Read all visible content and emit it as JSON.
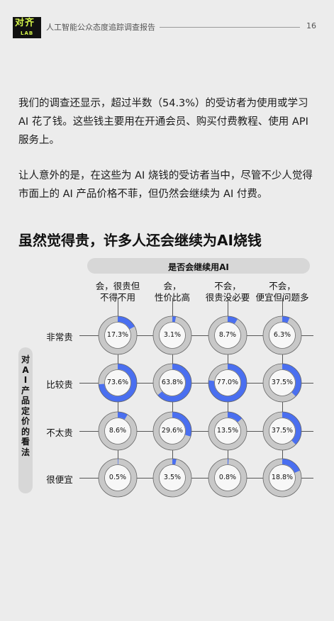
{
  "header": {
    "logo_main": "对齐",
    "logo_sub": "LAB",
    "title": "人工智能公众态度追踪调查报告",
    "page_number": "16"
  },
  "body": {
    "paragraph1": "我们的调查还显示，超过半数（54.3%）的受访者为使用或学习 AI 花了钱。这些钱主要用在开通会员、购买付费教程、使用 API 服务上。",
    "paragraph2": "让人意外的是，在这些为 AI 烧钱的受访者当中，尽管不少人觉得市面上的 AI 产品价格不菲，但仍然会继续为 AI 付费。"
  },
  "section_title": "虽然觉得贵，许多人还会继续为AI烧钱",
  "colors": {
    "accent": "#4a6ff0",
    "ring_base": "#c8c8c8",
    "band": "#d7d7d7"
  },
  "chart_data": {
    "type": "table",
    "title": "",
    "column_axis_label": "是否会继续用AI",
    "row_axis_label": "对AI产品定价的看法",
    "columns": [
      [
        "会，很贵但",
        "不得不用"
      ],
      [
        "会，",
        "性价比高"
      ],
      [
        "不会，",
        "很贵没必要"
      ],
      [
        "不会，",
        "便宜但问题多"
      ]
    ],
    "rows": [
      "非常贵",
      "比较贵",
      "不太贵",
      "很便宜"
    ],
    "values": [
      [
        17.3,
        3.1,
        8.7,
        6.3
      ],
      [
        73.6,
        63.8,
        77.0,
        37.5
      ],
      [
        8.6,
        29.6,
        13.5,
        37.5
      ],
      [
        0.5,
        3.5,
        0.8,
        18.8
      ]
    ],
    "labels": [
      [
        "17.3%",
        "3.1%",
        "8.7%",
        "6.3%"
      ],
      [
        "73.6%",
        "63.8%",
        "77.0%",
        "37.5%"
      ],
      [
        "8.6%",
        "29.6%",
        "13.5%",
        "37.5%"
      ],
      [
        "0.5%",
        "3.5%",
        "0.8%",
        "18.8%"
      ]
    ]
  }
}
